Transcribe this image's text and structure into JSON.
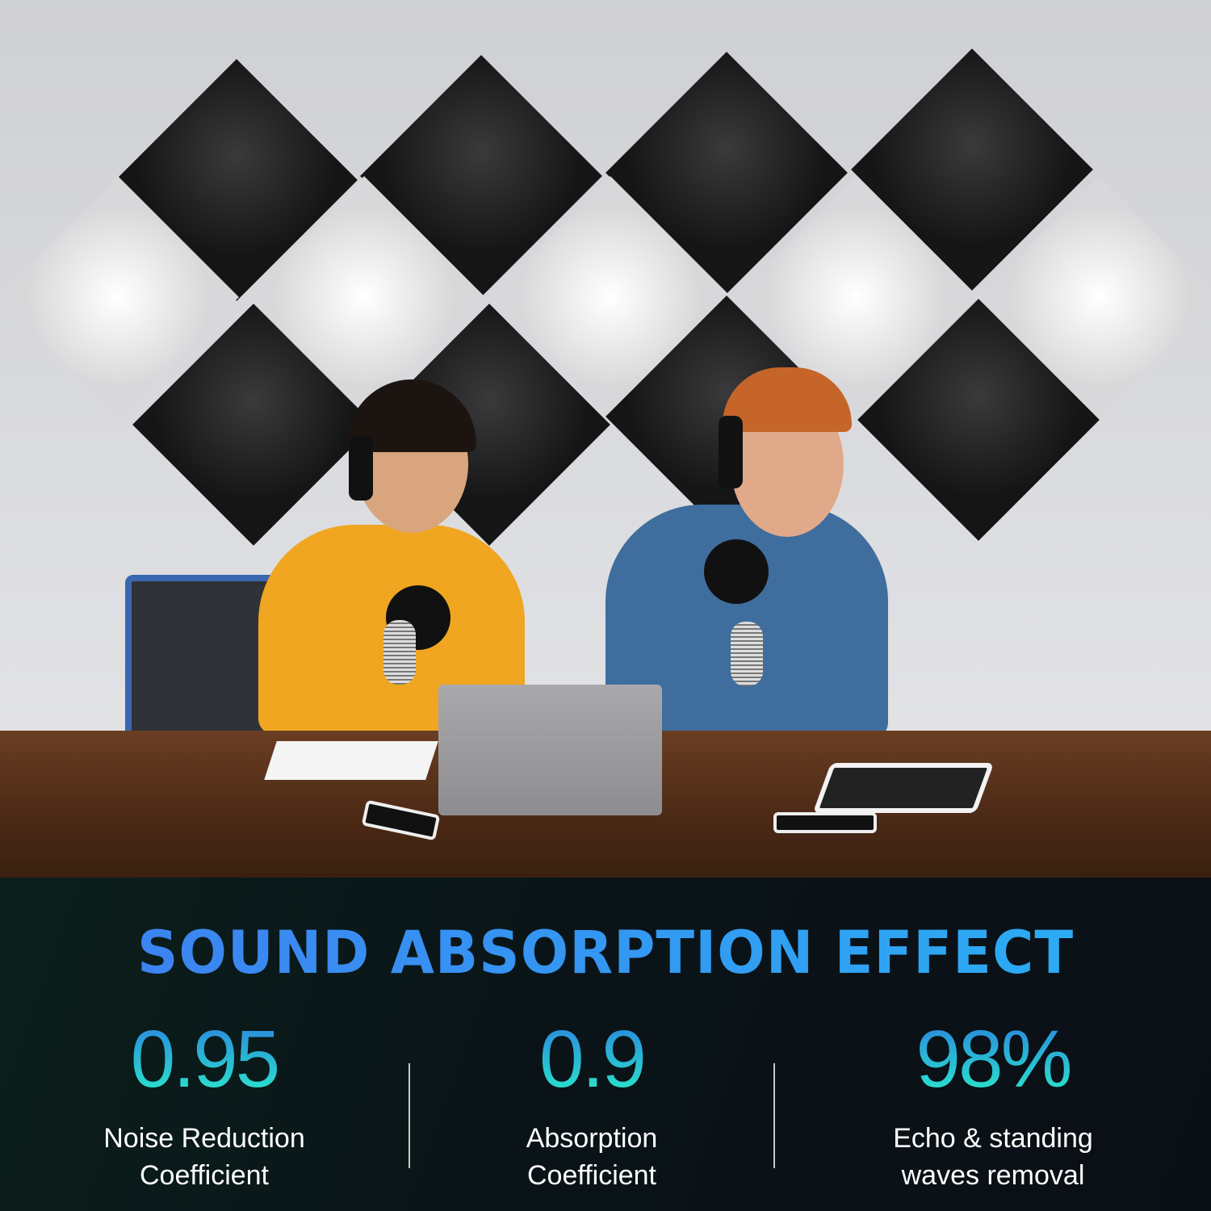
{
  "headline": "SOUND ABSORPTION EFFECT",
  "stats": [
    {
      "value": "0.95",
      "label_line1": "Noise Reduction",
      "label_line2": "Coefficient"
    },
    {
      "value": "0.9",
      "label_line1": "Absorption",
      "label_line2": "Coefficient"
    },
    {
      "value": "98%",
      "label_line1": "Echo & standing",
      "label_line2": "waves removal"
    }
  ],
  "colors": {
    "headline_gradient": [
      "#3f7ef0",
      "#29b1f4"
    ],
    "value_gradient": [
      "#2a7fe0",
      "#2af0c8"
    ],
    "background": "#0a1418",
    "panel_black": "#1c1c1e",
    "panel_white": "#f2f2f2"
  }
}
